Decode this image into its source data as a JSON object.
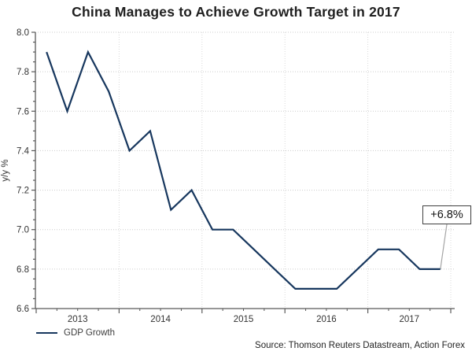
{
  "title": "China Manages to Achieve Growth Target in 2017",
  "chart_data": {
    "type": "line",
    "title": "China Manages to Achieve Growth Target in 2017",
    "ylabel": "y/y %",
    "xlabel": "",
    "ylim": [
      6.6,
      8.0
    ],
    "y_major_step": 0.2,
    "y_minor_step": 0.05,
    "y_tick_labels": [
      "8.0",
      "7.8",
      "7.6",
      "7.4",
      "7.2",
      "7.0",
      "6.8",
      "6.6"
    ],
    "x_tick_labels": [
      "2013",
      "2014",
      "2015",
      "2016",
      "2017"
    ],
    "grid": "horizontal dotted at major y ticks, vertical light lines at year boundaries",
    "legend_position": "bottom-left",
    "x": [
      "2013 Q1",
      "2013 Q2",
      "2013 Q3",
      "2013 Q4",
      "2014 Q1",
      "2014 Q2",
      "2014 Q3",
      "2014 Q4",
      "2015 Q1",
      "2015 Q2",
      "2015 Q3",
      "2015 Q4",
      "2016 Q1",
      "2016 Q2",
      "2016 Q3",
      "2016 Q4",
      "2017 Q1",
      "2017 Q2",
      "2017 Q3",
      "2017 Q4"
    ],
    "series": [
      {
        "name": "GDP Growth",
        "values": [
          7.9,
          7.6,
          7.9,
          7.7,
          7.4,
          7.5,
          7.1,
          7.2,
          7.0,
          7.0,
          6.9,
          6.8,
          6.7,
          6.7,
          6.7,
          6.8,
          6.9,
          6.9,
          6.8,
          6.8
        ],
        "color": "#17375e"
      }
    ],
    "annotation": {
      "label": "+6.8%",
      "point_index": 19,
      "point_value": 6.8
    }
  },
  "legend": {
    "label": "GDP Growth"
  },
  "source": "Source: Thomson Reuters Datastream, Action Forex",
  "colors": {
    "line": "#17375e",
    "axis": "#595959",
    "tick_label": "#333333",
    "grid_horizontal": "#cccccc",
    "grid_vertical": "#d9d9d9",
    "leader_line": "#a6a6a6",
    "annotation_border": "#3f3f3f",
    "background": "#ffffff",
    "title_text": "#1f1f1f"
  }
}
